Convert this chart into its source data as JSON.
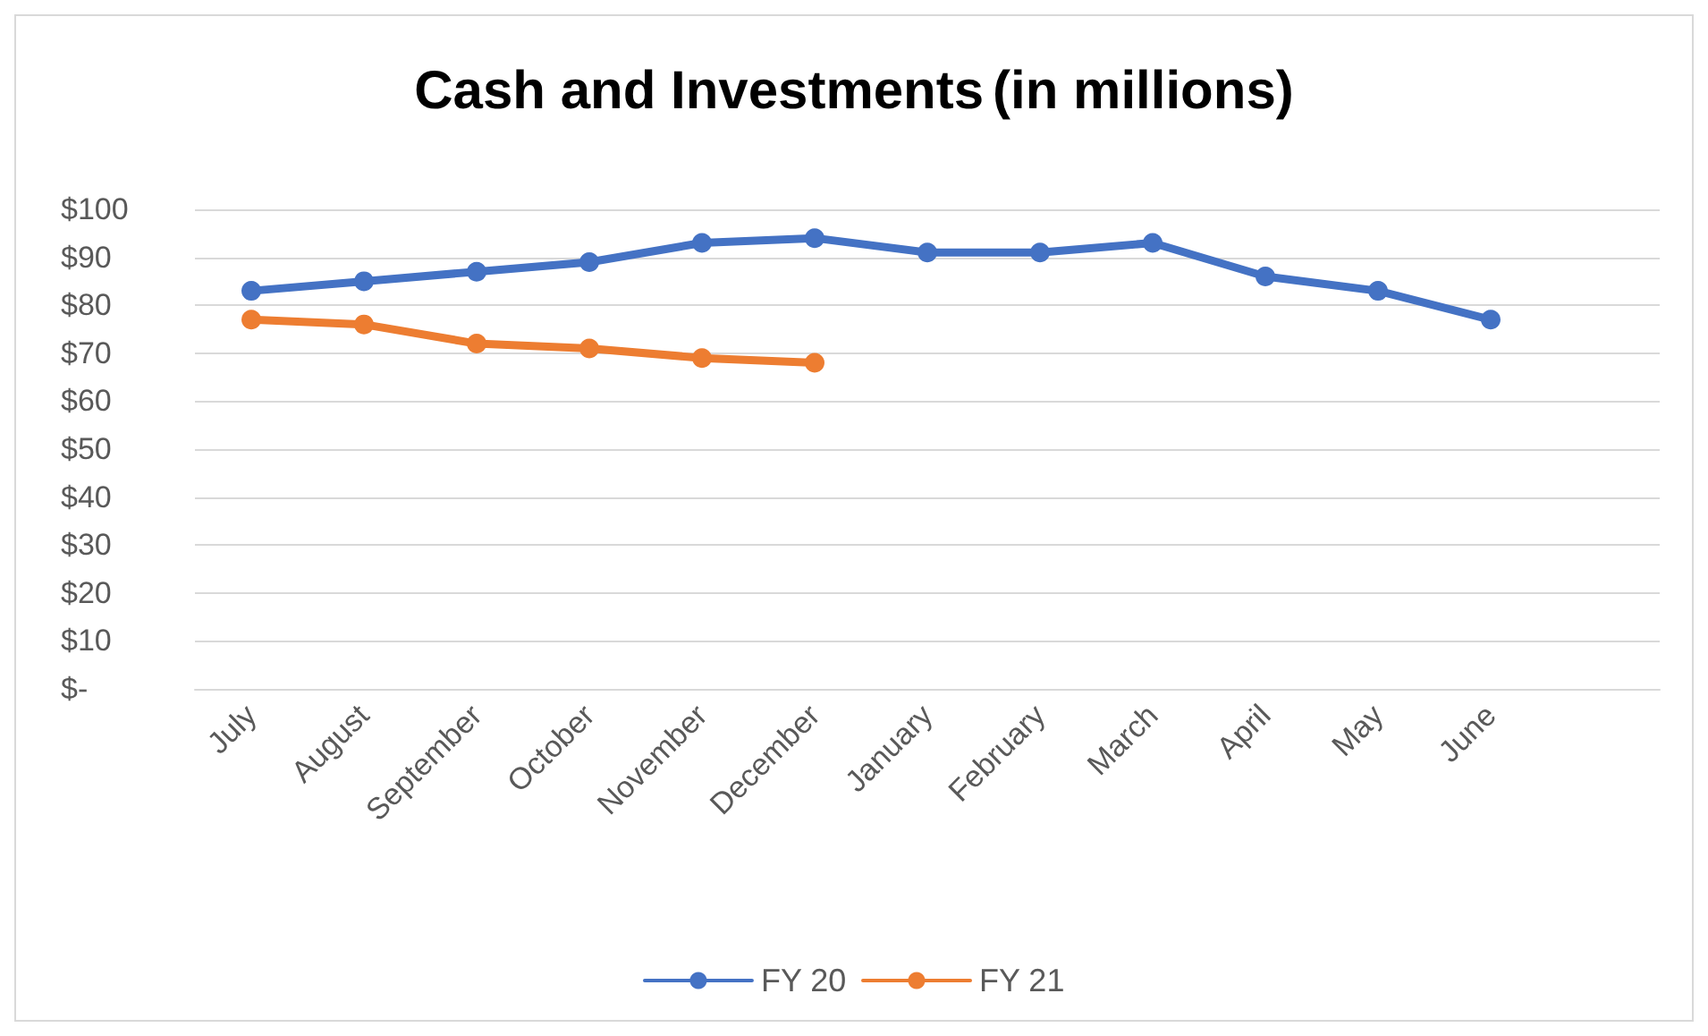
{
  "chart_data": {
    "type": "line",
    "title": "Cash and Investments",
    "subtitle": "(in millions)",
    "categories": [
      "July",
      "August",
      "September",
      "October",
      "November",
      "December",
      "January",
      "February",
      "March",
      "April",
      "May",
      "June",
      null
    ],
    "series": [
      {
        "name": "FY 20",
        "color": "#4472c4",
        "values": [
          83,
          85,
          87,
          89,
          93,
          94,
          91,
          91,
          93,
          86,
          83,
          77,
          null
        ]
      },
      {
        "name": "FY 21",
        "color": "#ed7d31",
        "values": [
          77,
          76,
          72,
          71,
          69,
          68,
          null,
          null,
          null,
          null,
          null,
          null,
          null
        ]
      }
    ],
    "ylim": [
      0,
      100
    ],
    "yticks": [
      {
        "value": 0,
        "label": "$-"
      },
      {
        "value": 10,
        "label": "$10"
      },
      {
        "value": 20,
        "label": "$20"
      },
      {
        "value": 30,
        "label": "$30"
      },
      {
        "value": 40,
        "label": "$40"
      },
      {
        "value": 50,
        "label": "$50"
      },
      {
        "value": 60,
        "label": "$60"
      },
      {
        "value": 70,
        "label": "$70"
      },
      {
        "value": 80,
        "label": "$80"
      },
      {
        "value": 90,
        "label": "$90"
      },
      {
        "value": 100,
        "label": "$100"
      }
    ],
    "grid": "y",
    "legend": "bottom",
    "marker": "circle",
    "line_style": "solid"
  }
}
